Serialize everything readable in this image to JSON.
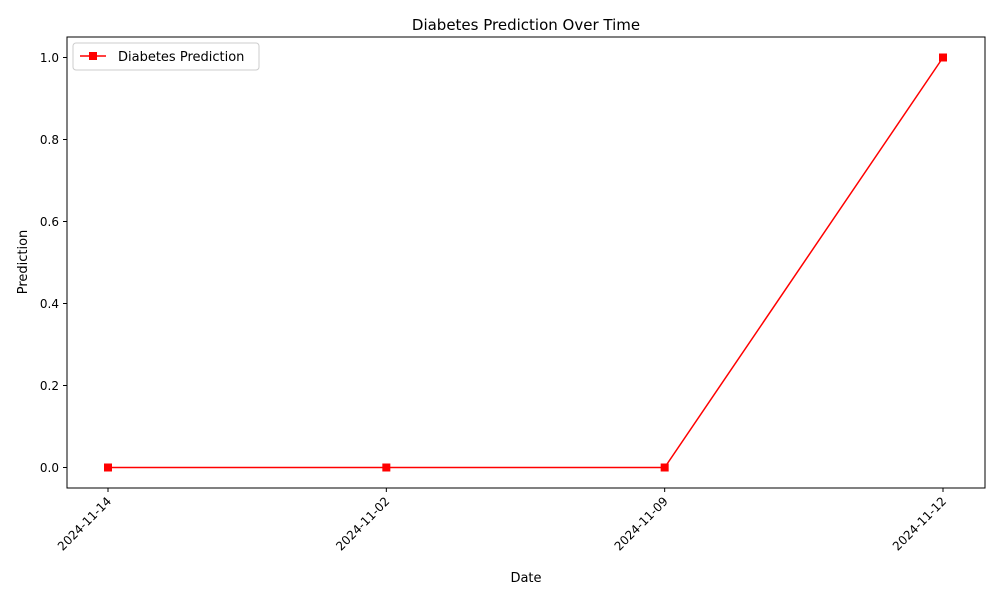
{
  "chart_data": {
    "type": "line",
    "title": "Diabetes Prediction Over Time",
    "xlabel": "Date",
    "ylabel": "Prediction",
    "categories": [
      "2024-11-14",
      "2024-11-02",
      "2024-11-09",
      "2024-11-12"
    ],
    "series": [
      {
        "name": "Diabetes Prediction",
        "values": [
          0,
          0,
          0,
          1
        ],
        "color": "#ff0000",
        "marker": "square"
      }
    ],
    "ylim": [
      -0.05,
      1.05
    ],
    "yticks": [
      "0.0",
      "0.2",
      "0.4",
      "0.6",
      "0.8",
      "1.0"
    ],
    "grid": false,
    "legend": "top-left",
    "xtick_rotation": "45"
  }
}
